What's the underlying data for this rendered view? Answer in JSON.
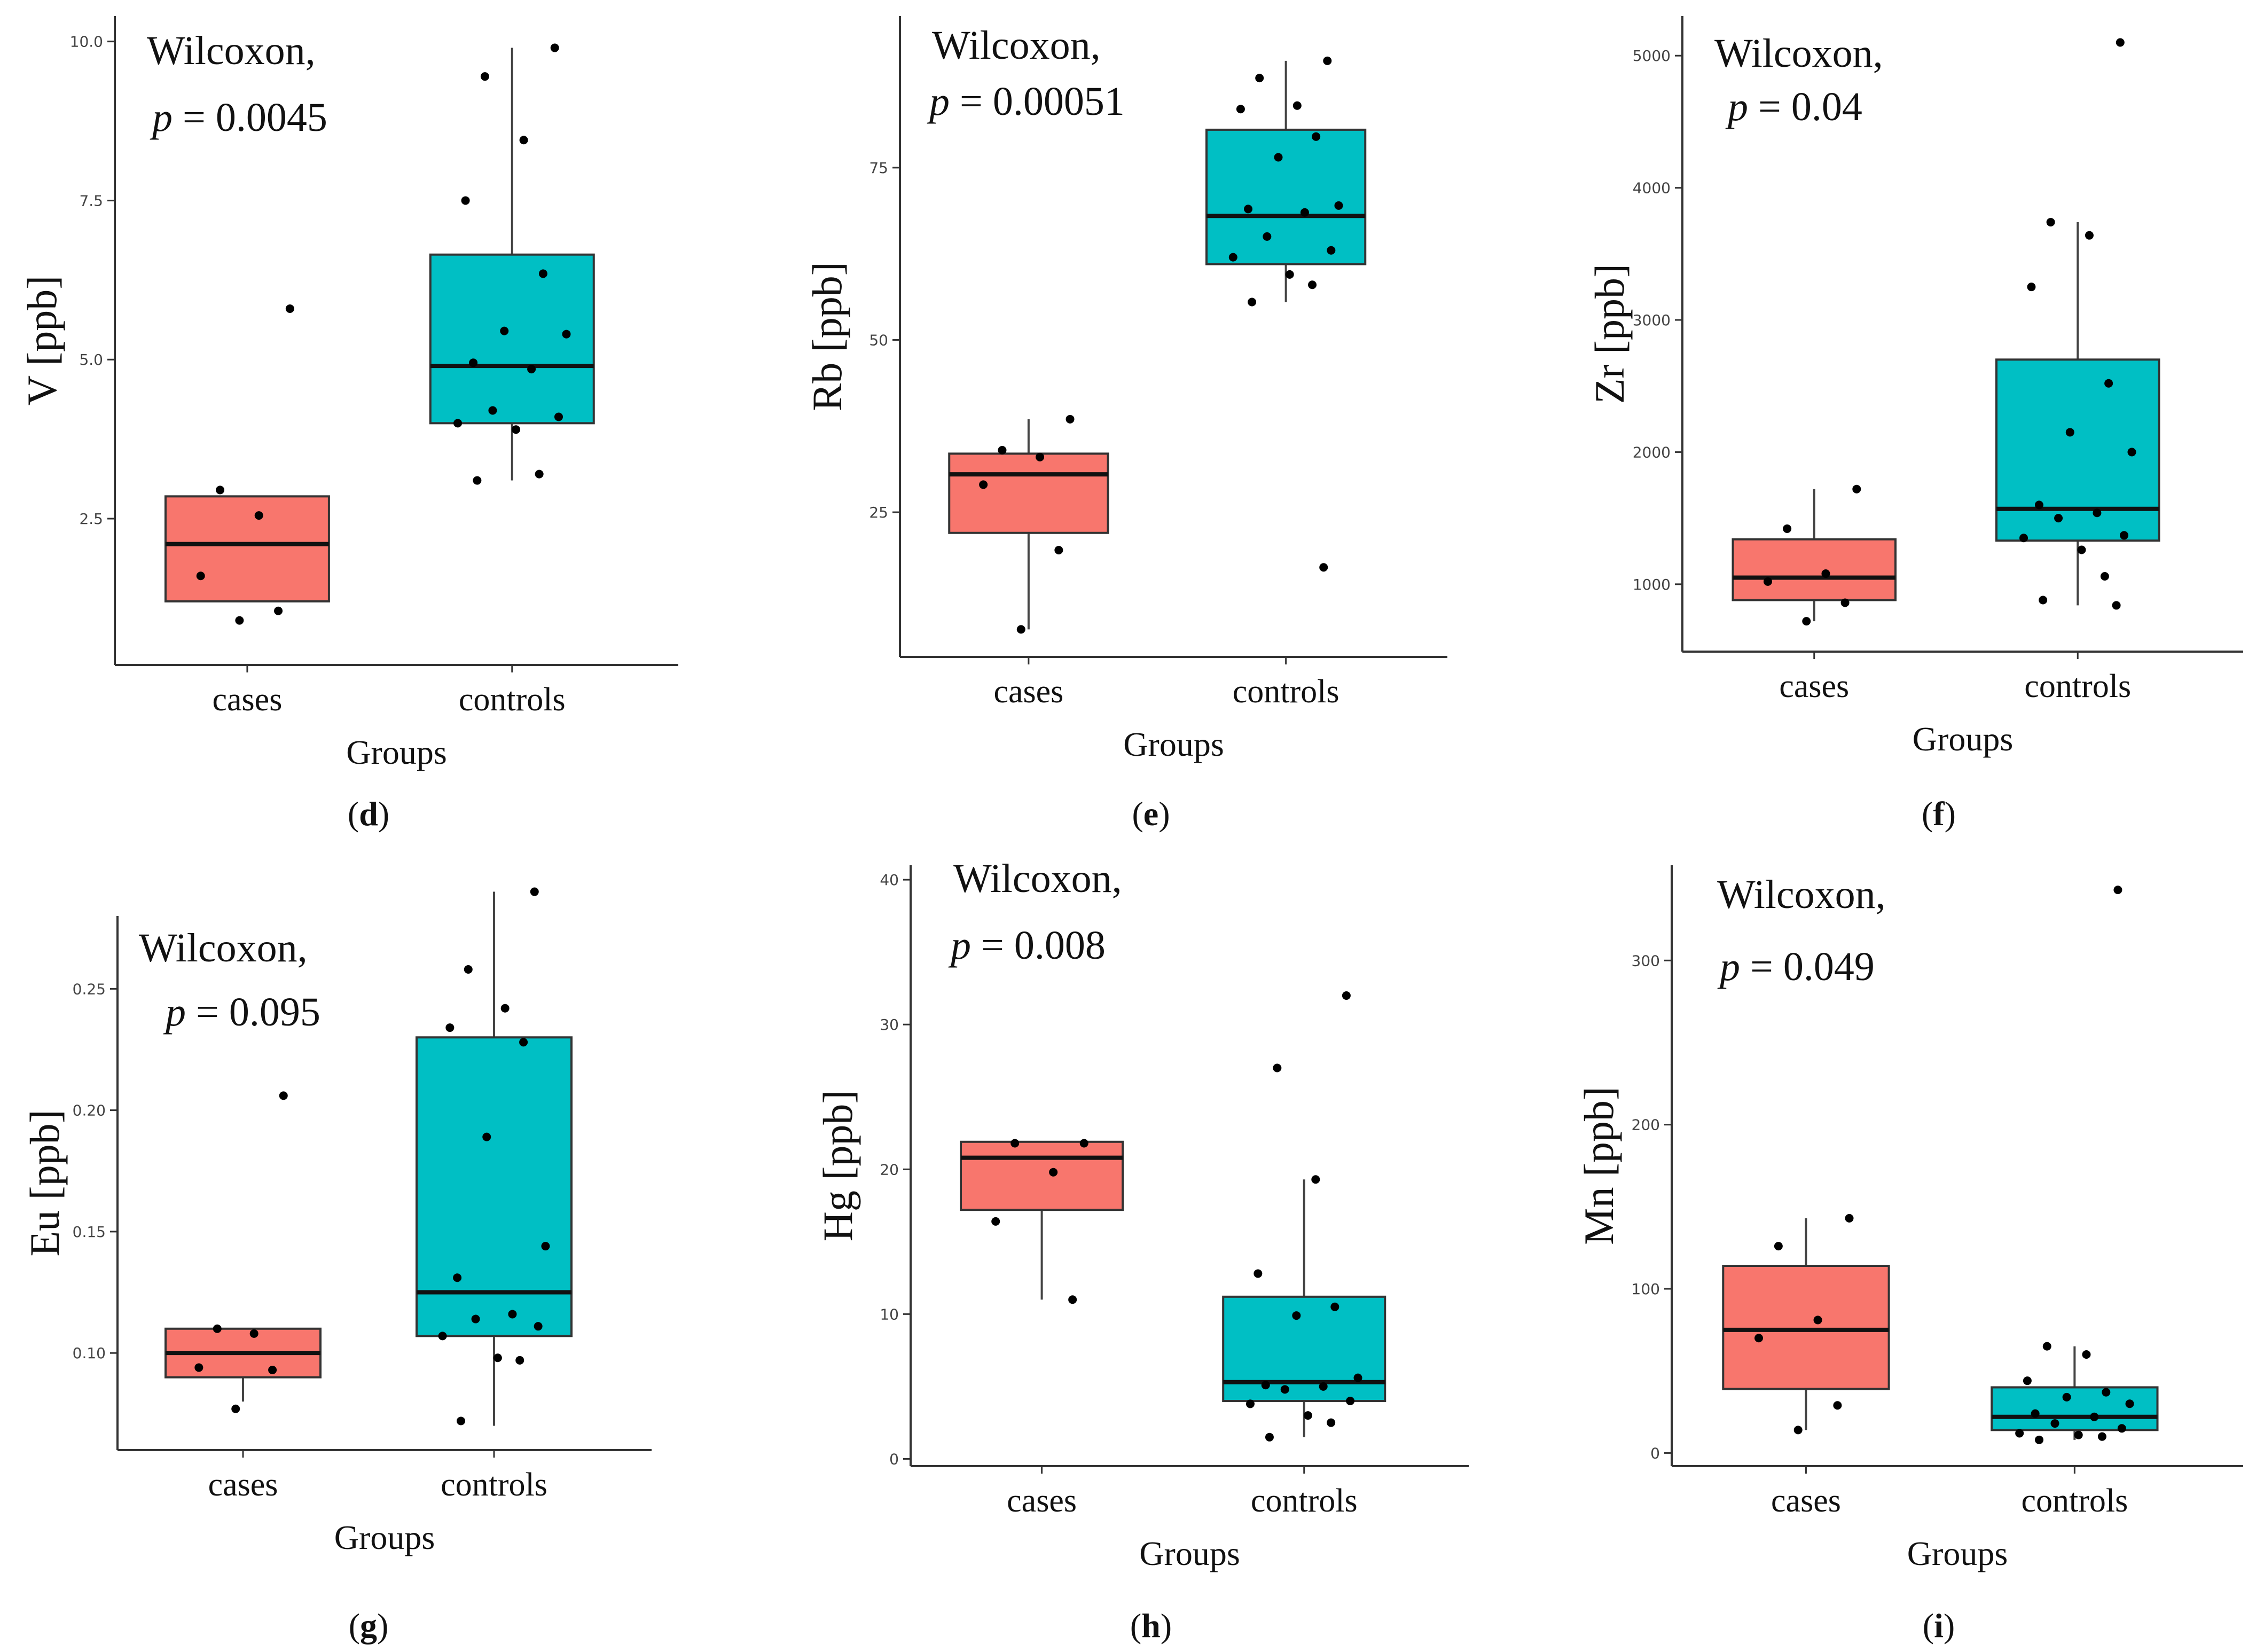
{
  "colors": {
    "cases": "#F8766D",
    "controls": "#00BFC4",
    "axis": "#333333",
    "point": "#000000"
  },
  "chart_data": [
    {
      "type": "boxplot",
      "panel_label": "d",
      "stat_name": "Wilcoxon,",
      "p_value": "0.0045",
      "title": "",
      "xlabel": "Groups",
      "ylabel": "V [ppb]",
      "ylim": [
        0.2,
        10.4
      ],
      "yticks": [
        2.5,
        5.0,
        7.5,
        10.0
      ],
      "yticklabels": [
        "2.5",
        "5.0",
        "7.5",
        "10.0"
      ],
      "categories": [
        "cases",
        "controls"
      ],
      "boxes": [
        {
          "name": "cases",
          "q1": 1.2,
          "median": 2.1,
          "q3": 2.85,
          "whisker_low": 1.2,
          "whisker_high": 2.85,
          "points": [
            5.8,
            2.95,
            2.55,
            1.6,
            1.05,
            0.9
          ]
        },
        {
          "name": "controls",
          "q1": 4.0,
          "median": 4.9,
          "q3": 6.65,
          "whisker_low": 3.1,
          "whisker_high": 9.9,
          "points": [
            9.9,
            9.45,
            8.45,
            7.5,
            6.35,
            5.45,
            5.4,
            4.95,
            4.85,
            4.2,
            4.1,
            4.0,
            3.9,
            3.2,
            3.1
          ]
        }
      ]
    },
    {
      "type": "boxplot",
      "panel_label": "e",
      "stat_name": "Wilcoxon,",
      "p_value": "0.00051",
      "title": "",
      "xlabel": "Groups",
      "ylabel": "Rb [ppb]",
      "ylim": [
        4,
        97
      ],
      "yticks": [
        25,
        50,
        75
      ],
      "yticklabels": [
        "25",
        "50",
        "75"
      ],
      "categories": [
        "cases",
        "controls"
      ],
      "boxes": [
        {
          "name": "cases",
          "q1": 22,
          "median": 30.5,
          "q3": 33.5,
          "whisker_low": 8,
          "whisker_high": 38.5,
          "points": [
            38.5,
            34,
            33,
            29,
            19.5,
            8
          ]
        },
        {
          "name": "controls",
          "q1": 61,
          "median": 68,
          "q3": 80.5,
          "whisker_low": 55.5,
          "whisker_high": 90.5,
          "points": [
            90.5,
            88,
            84,
            83.5,
            79.5,
            76.5,
            69.5,
            69,
            68.5,
            65,
            63,
            62,
            59.5,
            58,
            55.5,
            17
          ]
        }
      ]
    },
    {
      "type": "boxplot",
      "panel_label": "f",
      "stat_name": "Wilcoxon,",
      "p_value": "0.04",
      "title": "",
      "xlabel": "Groups",
      "ylabel": "Zr [ppb]",
      "ylim": [
        490,
        5300
      ],
      "yticks": [
        1000,
        2000,
        3000,
        4000,
        5000
      ],
      "yticklabels": [
        "1000",
        "2000",
        "3000",
        "4000",
        "5000"
      ],
      "categories": [
        "cases",
        "controls"
      ],
      "boxes": [
        {
          "name": "cases",
          "q1": 880,
          "median": 1050,
          "q3": 1340,
          "whisker_low": 720,
          "whisker_high": 1720,
          "points": [
            1720,
            1420,
            1080,
            1020,
            860,
            720
          ]
        },
        {
          "name": "controls",
          "q1": 1330,
          "median": 1570,
          "q3": 2700,
          "whisker_low": 840,
          "whisker_high": 3740,
          "points": [
            5100,
            3740,
            3640,
            3250,
            2520,
            2150,
            2000,
            1600,
            1540,
            1500,
            1370,
            1350,
            1260,
            1060,
            880,
            840
          ]
        }
      ]
    },
    {
      "type": "boxplot",
      "panel_label": "g",
      "stat_name": "Wilcoxon,",
      "p_value": "0.095",
      "title": "",
      "xlabel": "Groups",
      "ylabel": "Eu [ppb]",
      "ylim": [
        0.06,
        0.28
      ],
      "yticks": [
        0.1,
        0.15,
        0.2,
        0.25
      ],
      "yticklabels": [
        "0.10",
        "0.15",
        "0.20",
        "0.25"
      ],
      "categories": [
        "cases",
        "controls"
      ],
      "boxes": [
        {
          "name": "cases",
          "q1": 0.09,
          "median": 0.1,
          "q3": 0.11,
          "whisker_low": 0.08,
          "whisker_high": 0.11,
          "points": [
            0.206,
            0.11,
            0.108,
            0.094,
            0.093,
            0.077
          ]
        },
        {
          "name": "controls",
          "q1": 0.107,
          "median": 0.125,
          "q3": 0.23,
          "whisker_low": 0.07,
          "whisker_high": 0.29,
          "points": [
            0.29,
            0.258,
            0.242,
            0.234,
            0.228,
            0.189,
            0.144,
            0.131,
            0.116,
            0.114,
            0.111,
            0.107,
            0.098,
            0.097,
            0.072
          ]
        }
      ]
    },
    {
      "type": "boxplot",
      "panel_label": "h",
      "stat_name": "Wilcoxon,",
      "p_value": "0.008",
      "title": "",
      "xlabel": "Groups",
      "ylabel": "Hg [ppb]",
      "ylim": [
        -0.5,
        41
      ],
      "yticks": [
        0,
        10,
        20,
        30,
        40
      ],
      "yticklabels": [
        "0",
        "10",
        "20",
        "30",
        "40"
      ],
      "categories": [
        "cases",
        "controls"
      ],
      "boxes": [
        {
          "name": "cases",
          "q1": 17.2,
          "median": 20.8,
          "q3": 21.9,
          "whisker_low": 11,
          "whisker_high": 21.9,
          "points": [
            21.8,
            21.8,
            19.8,
            16.4,
            11
          ]
        },
        {
          "name": "controls",
          "q1": 4,
          "median": 5.3,
          "q3": 11.2,
          "whisker_low": 1.5,
          "whisker_high": 19.3,
          "points": [
            32,
            27,
            19.3,
            12.8,
            10.5,
            9.9,
            5.6,
            5.1,
            5,
            4.8,
            4,
            3.8,
            3,
            2.5,
            1.5
          ]
        }
      ]
    },
    {
      "type": "boxplot",
      "panel_label": "i",
      "stat_name": "Wilcoxon,",
      "p_value": "0.049",
      "title": "",
      "xlabel": "Groups",
      "ylabel": "Mn [ppb]",
      "ylim": [
        -8,
        358
      ],
      "yticks": [
        0,
        100,
        200,
        300
      ],
      "yticklabels": [
        "0",
        "100",
        "200",
        "300"
      ],
      "categories": [
        "cases",
        "controls"
      ],
      "boxes": [
        {
          "name": "cases",
          "q1": 39,
          "median": 75,
          "q3": 114,
          "whisker_low": 14,
          "whisker_high": 143,
          "points": [
            143,
            126,
            81,
            70,
            29,
            14
          ]
        },
        {
          "name": "controls",
          "q1": 14,
          "median": 22,
          "q3": 40,
          "whisker_low": 8,
          "whisker_high": 65,
          "points": [
            343,
            65,
            60,
            44,
            37,
            34,
            30,
            24,
            22,
            18,
            15,
            12,
            11,
            10,
            8
          ]
        }
      ]
    }
  ]
}
